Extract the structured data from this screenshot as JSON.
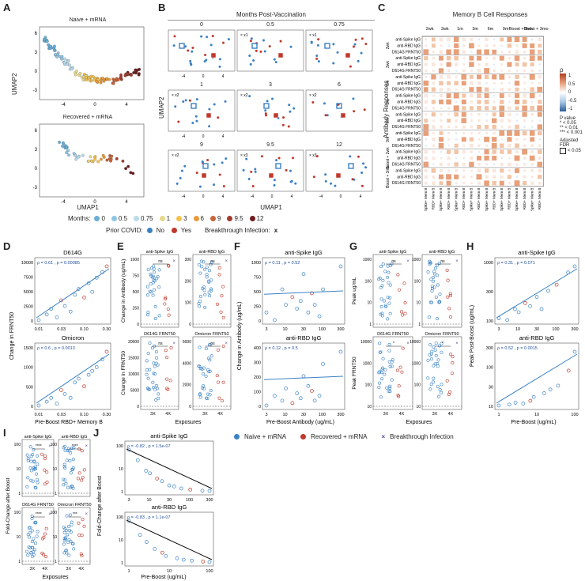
{
  "panels": {
    "A": {
      "label": "A",
      "top_title": "Naive + mRNA",
      "bottom_title": "Recovered + mRNA",
      "xlabel": "UMAP1",
      "ylabel": "UMAP2",
      "xticks": [
        "-4",
        "0",
        "4"
      ],
      "yticks": [
        "6",
        "3",
        "0",
        "-3"
      ],
      "legend_months_label": "Months:",
      "months": [
        "0",
        "0.5",
        "0.75",
        "1",
        "3",
        "6",
        "9",
        "9.5",
        "12"
      ],
      "month_colors": [
        "#6aaed6",
        "#8fc4e3",
        "#b9dbea",
        "#e8d88a",
        "#f2c14e",
        "#e79a3a",
        "#c9643a",
        "#a33b2d",
        "#6b1d1d"
      ],
      "prior_covid_label": "Prior COVID:",
      "prior_no": "No",
      "prior_yes": "Yes",
      "color_no": "#3b82c4",
      "color_yes": "#c0392b",
      "breakthrough_label": "Breakthrough Infection:",
      "breakthrough_symbol": "x"
    },
    "B": {
      "label": "B",
      "title": "Months Post-Vaccination",
      "xlabel": "UMAP1",
      "ylabel": "UMAP2",
      "facets": [
        "0",
        "0.5",
        "0.75",
        "1",
        "3",
        "6",
        "9",
        "9.5",
        "12"
      ],
      "facet_notes": [
        "",
        "x1",
        "x1",
        "x2",
        "x2",
        "x2",
        "x2",
        "x3",
        "x3"
      ],
      "xticks": [
        "-4",
        "0",
        "4"
      ],
      "yticks": [
        "6",
        "3",
        "0",
        "-3"
      ]
    },
    "C": {
      "label": "C",
      "title": "Memory B Cell Responses",
      "col_groups": [
        "2wk",
        "3wk",
        "1m",
        "3m",
        "6m",
        "9m",
        "Boost + 2wk",
        "Boost + 3mo"
      ],
      "col_labels": [
        "Spike+ Mem B",
        "RBD+ Mem B"
      ],
      "row_groups": [
        "2wk",
        "3wk",
        "1m",
        "3m",
        "6m",
        "9m",
        "Boost + 2wk",
        "Boost + 3mo"
      ],
      "row_labels": [
        "anti-Spike IgG",
        "anti-RBD IgG",
        "D614G FRNT50"
      ],
      "ylabel": "Antibody Responses",
      "legend_rho": "ρ",
      "legend_ticks": [
        "1",
        "0.5",
        "0",
        "-0.5",
        "-1"
      ],
      "legend_pvalue_title": "P value",
      "legend_pvalues": [
        "* < 0.05",
        "** < 0.01",
        "*** < 0.001"
      ],
      "legend_fdr_title": "Adjusted FDR",
      "legend_fdr": "< 0.05"
    },
    "D": {
      "label": "D",
      "top_title": "D614G",
      "bottom_title": "Omicron",
      "top_stat": "ρ = 0.61 , p = 0.00085",
      "bottom_stat": "ρ = 0.6 , p = 0.0013",
      "xlabel": "Pre-Boost RBD+ Memory B",
      "ylabel": "Change in FRNT50",
      "xticks": [
        "0.01",
        "0.03",
        "0.10",
        "0.30"
      ],
      "top_yticks": [
        "10000",
        "7500",
        "5000",
        "2500",
        "0"
      ],
      "bottom_yticks": [
        "1500",
        "1000",
        "500",
        "0"
      ]
    },
    "E": {
      "label": "E",
      "subtitles": [
        "anti-Spike IgG",
        "anti-RBD IgG",
        "D614G FRNT50",
        "Omicron FRNT50"
      ],
      "ylabel_top": "Change in Antibody (ug/mL)",
      "ylabel_bottom": "Change in FRNT50",
      "sig": [
        "ns",
        "ns",
        "ns",
        "ns"
      ],
      "xlabel": "Exposures",
      "xticks": [
        "3X",
        "4X"
      ],
      "yticks_spike": [
        "1000",
        "750",
        "500",
        "250",
        "0"
      ],
      "yticks_rbd": [
        "300",
        "200",
        "100",
        "0"
      ],
      "yticks_d614g": [
        "20000",
        "15000",
        "10000",
        "5000",
        "0"
      ],
      "yticks_omi": [
        "6000",
        "4000",
        "2000",
        "0"
      ]
    },
    "F": {
      "label": "F",
      "top_title": "anti-Spike IgG",
      "bottom_title": "anti-RBD IgG",
      "top_stat": "ρ = 0.11 , p = 0.52",
      "bottom_stat": "ρ = 0.12 , p = 0.5",
      "xlabel": "Pre-Boost Antibody (ug/mL)",
      "ylabel": "Change in Antibody (ug/mL)",
      "xticks": [
        "3",
        "10",
        "30",
        "100",
        "300"
      ],
      "top_yticks": [
        "1000",
        "750",
        "500",
        "250",
        "0"
      ],
      "bottom_yticks": [
        "400",
        "300",
        "200",
        "100",
        "0"
      ]
    },
    "G": {
      "label": "G",
      "subtitles": [
        "anti-Spike IgG",
        "anti-RBD IgG",
        "D614G FRNT50",
        "Omicron FRNT50"
      ],
      "ylabel_top": "Peak ug/mL",
      "ylabel_bottom": "Peak FRNT50",
      "sig": [
        "ns",
        "ns",
        "*",
        "*"
      ],
      "xlabel": "Exposures",
      "xticks": [
        "3X",
        "4X"
      ],
      "yticks_top": [
        "1000",
        "100",
        "10",
        "1"
      ],
      "yticks_bottom": [
        "10000",
        "1000",
        "100",
        "10"
      ]
    },
    "H": {
      "label": "H",
      "top_title": "anti-Spike IgG",
      "bottom_title": "anti-RBD IgG",
      "top_stat": "ρ = 0.31 , p = 0.071",
      "bottom_stat": "ρ = 0.52 , p = 0.0015",
      "xlabel": "Pre-Boost (ug/mL)",
      "ylabel": "Peak Post-Boost (ug/mL)",
      "top_xticks": [
        "3",
        "10",
        "30",
        "100",
        "300"
      ],
      "bottom_xticks": [
        "1",
        "10",
        "100"
      ],
      "top_yticks": [
        "1000",
        "300",
        "100"
      ],
      "bottom_yticks": [
        "300",
        "100",
        "30",
        "10"
      ]
    },
    "I": {
      "label": "I",
      "subtitles": [
        "anti-Spike IgG",
        "anti-RBD IgG",
        "D614G FRNT50",
        "Omicron FRNT50"
      ],
      "sig": [
        "****",
        "****",
        "****",
        "***"
      ],
      "ylabel": "Fold-Change after Boost",
      "xlabel": "Exposures",
      "xticks": [
        "3X",
        "4X"
      ],
      "yticks": [
        "100",
        "10",
        "1"
      ]
    },
    "J": {
      "label": "J",
      "top_title": "anti-Spike IgG",
      "bottom_title": "anti-RBD IgG",
      "top_stat": "ρ = -0.82 , p = 1.5e-07",
      "bottom_stat": "ρ = -0.83 , p = 1.1e-07",
      "xlabel": "Pre-Boost (ug/mL)",
      "ylabel": "Fold-Change after Boost",
      "top_xticks": [
        "3",
        "10",
        "30",
        "100",
        "300"
      ],
      "bottom_xticks": [
        "1",
        "10",
        "100"
      ],
      "yticks": [
        "100",
        "10",
        "1"
      ]
    },
    "legend_bottom": {
      "naive": "Naive + mRNA",
      "recovered": "Recovered + mRNA",
      "breakthrough": "Breakthrough Infection"
    }
  },
  "chart_data": [
    {
      "type": "scatter",
      "panel": "D-top",
      "title": "D614G",
      "xlabel": "Pre-Boost RBD+ Memory B",
      "ylabel": "Change in FRNT50",
      "x": [
        0.008,
        0.012,
        0.015,
        0.02,
        0.025,
        0.03,
        0.04,
        0.05,
        0.06,
        0.08,
        0.1,
        0.12,
        0.15,
        0.2,
        0.25
      ],
      "y": [
        500,
        1500,
        2500,
        1000,
        4000,
        3000,
        2000,
        5000,
        6000,
        4500,
        7000,
        5500,
        8000,
        9000,
        10000
      ]
    },
    {
      "type": "scatter",
      "panel": "D-bottom",
      "title": "Omicron",
      "xlabel": "Pre-Boost RBD+ Memory B",
      "ylabel": "Change in FRNT50",
      "x": [
        0.008,
        0.012,
        0.015,
        0.02,
        0.025,
        0.03,
        0.04,
        0.05,
        0.06,
        0.08,
        0.1,
        0.12,
        0.15,
        0.2,
        0.25
      ],
      "y": [
        100,
        200,
        300,
        150,
        500,
        400,
        300,
        700,
        800,
        600,
        900,
        1000,
        1100,
        1300,
        1500
      ]
    },
    {
      "type": "scatter",
      "panel": "F-top",
      "title": "anti-Spike IgG",
      "x": [
        3,
        5,
        8,
        10,
        15,
        20,
        25,
        30,
        40,
        50,
        60,
        80,
        100,
        300
      ],
      "y": [
        300,
        200,
        600,
        400,
        500,
        350,
        450,
        800,
        300,
        550,
        400,
        250,
        600,
        900
      ]
    },
    {
      "type": "scatter",
      "panel": "F-bottom",
      "title": "anti-RBD IgG",
      "x": [
        3,
        5,
        8,
        10,
        15,
        20,
        25,
        30,
        40,
        50,
        60,
        80,
        100,
        300
      ],
      "y": [
        80,
        120,
        100,
        150,
        90,
        130,
        110,
        200,
        160,
        140,
        100,
        120,
        250,
        300
      ]
    },
    {
      "type": "scatter",
      "panel": "H-top",
      "title": "anti-Spike IgG",
      "x": [
        3,
        5,
        8,
        10,
        15,
        20,
        30,
        40,
        60,
        100,
        200,
        300
      ],
      "y": [
        150,
        120,
        300,
        250,
        400,
        350,
        500,
        300,
        600,
        700,
        900,
        1000
      ]
    },
    {
      "type": "scatter",
      "panel": "H-bottom",
      "title": "anti-RBD IgG",
      "x": [
        1,
        2,
        3,
        5,
        8,
        10,
        20,
        30,
        50,
        100,
        150
      ],
      "y": [
        15,
        20,
        30,
        25,
        40,
        60,
        80,
        100,
        120,
        200,
        300
      ]
    },
    {
      "type": "scatter",
      "panel": "J-top",
      "title": "anti-Spike IgG",
      "x": [
        3,
        5,
        8,
        10,
        15,
        20,
        30,
        40,
        60,
        100,
        200,
        300
      ],
      "y": [
        80,
        60,
        40,
        35,
        25,
        20,
        12,
        10,
        6,
        4,
        2,
        1.5
      ]
    },
    {
      "type": "scatter",
      "panel": "J-bottom",
      "title": "anti-RBD IgG",
      "x": [
        1,
        2,
        3,
        5,
        8,
        10,
        20,
        30,
        50,
        100,
        150
      ],
      "y": [
        90,
        60,
        45,
        30,
        22,
        15,
        10,
        7,
        5,
        3,
        2
      ]
    }
  ]
}
